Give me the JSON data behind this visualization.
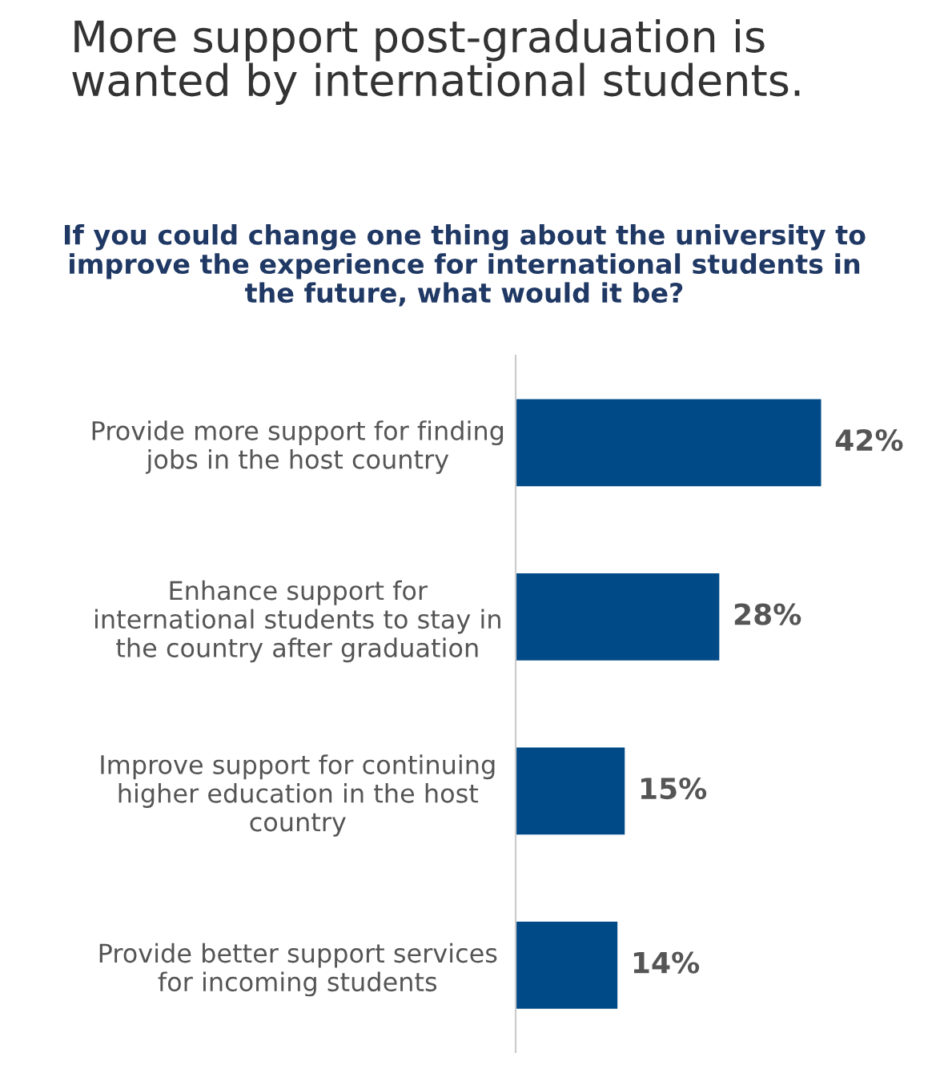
{
  "chart_data": {
    "type": "bar",
    "orientation": "horizontal",
    "title": "More support post-graduation is\nwanted by international students.",
    "subtitle": "If you could change one thing about the university to\nimprove the experience for international students in\nthe future, what would it be?",
    "categories": [
      "Provide more support for finding\njobs in the host country",
      "Enhance support for\ninternational students to stay in\nthe country after graduation",
      "Improve support for continuing\nhigher education in the host\ncountry",
      "Provide better support services\nfor incoming students"
    ],
    "values": [
      42,
      28,
      15,
      14
    ],
    "value_labels": [
      "42%",
      "28%",
      "15%",
      "14%"
    ],
    "color": "#004b87",
    "grid": false,
    "legend": false
  }
}
